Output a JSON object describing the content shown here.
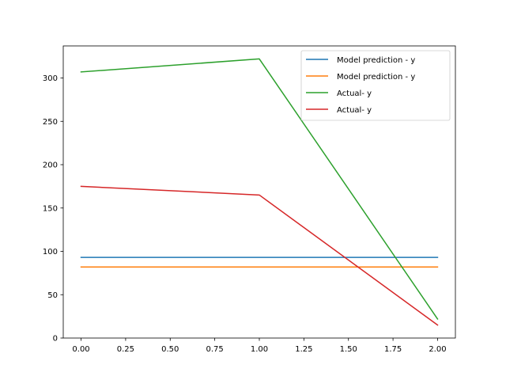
{
  "chart_data": {
    "type": "line",
    "title": "",
    "xlabel": "",
    "ylabel": "",
    "x": [
      0,
      1,
      2
    ],
    "xlim": [
      -0.1,
      2.1
    ],
    "ylim": [
      0,
      337
    ],
    "xticks": [
      0.0,
      0.25,
      0.5,
      0.75,
      1.0,
      1.25,
      1.5,
      1.75,
      2.0
    ],
    "xtick_labels": [
      "0.00",
      "0.25",
      "0.50",
      "0.75",
      "1.00",
      "1.25",
      "1.50",
      "1.75",
      "2.00"
    ],
    "yticks": [
      0,
      50,
      100,
      150,
      200,
      250,
      300
    ],
    "ytick_labels": [
      "0",
      "50",
      "100",
      "150",
      "200",
      "250",
      "300"
    ],
    "grid": false,
    "legend_position": "top-right",
    "series": [
      {
        "name": "Model prediction - y",
        "color": "#1f77b4",
        "values": [
          93,
          93,
          93
        ]
      },
      {
        "name": "Model prediction - y",
        "color": "#ff7f0e",
        "values": [
          82,
          82,
          82
        ]
      },
      {
        "name": "Actual- y",
        "color": "#2ca02c",
        "values": [
          307,
          322,
          22
        ]
      },
      {
        "name": "Actual- y",
        "color": "#d62728",
        "values": [
          175,
          165,
          15
        ]
      }
    ]
  }
}
